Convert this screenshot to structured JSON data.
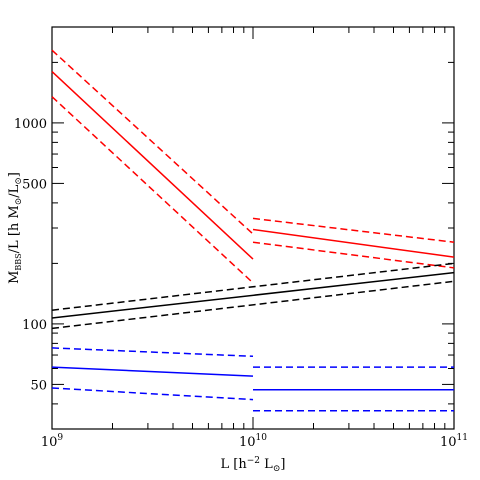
{
  "chart_data": {
    "type": "line",
    "x_scale": "log",
    "y_scale": "log",
    "xlim": [
      1000000000,
      100000000000
    ],
    "ylim": [
      30,
      3000
    ],
    "grid": false,
    "xlabel": "L [h⁻² L⊙]",
    "ylabel": "M_BBS/L [h M⊙/L⊙]",
    "ylabel_parts": {
      "base": "M",
      "base_sub": "BBS",
      "mid": "/L [h M",
      "mid_sub": "⊙",
      "mid2": "/L",
      "mid2_sub": "⊙",
      "end": "]"
    },
    "xlabel_parts": {
      "base": "L [h",
      "sup": "−2",
      "mid": " L",
      "sub": "⊙",
      "end": "]"
    },
    "x_tick_labels": [
      {
        "value": 1000000000,
        "base": "10",
        "exp": "9"
      },
      {
        "value": 10000000000,
        "base": "10",
        "exp": "10"
      },
      {
        "value": 100000000000,
        "base": "10",
        "exp": "11"
      }
    ],
    "y_tick_labels": [
      {
        "value": 50,
        "label": "50"
      },
      {
        "value": 100,
        "label": "100"
      },
      {
        "value": 500,
        "label": "500"
      },
      {
        "value": 1000,
        "label": "1000"
      }
    ],
    "series": [
      {
        "color": "#ff0000",
        "style": "solid",
        "x": [
          1000000000,
          10000000000
        ],
        "y": [
          1800,
          210
        ]
      },
      {
        "color": "#ff0000",
        "style": "dashed",
        "x": [
          1000000000,
          10000000000
        ],
        "y": [
          2300,
          280
        ]
      },
      {
        "color": "#ff0000",
        "style": "dashed",
        "x": [
          1000000000,
          10000000000
        ],
        "y": [
          1350,
          160
        ]
      },
      {
        "color": "#ff0000",
        "style": "solid",
        "x": [
          10000000000,
          100000000000
        ],
        "y": [
          295,
          215
        ]
      },
      {
        "color": "#ff0000",
        "style": "dashed",
        "x": [
          10000000000,
          100000000000
        ],
        "y": [
          335,
          255
        ]
      },
      {
        "color": "#ff0000",
        "style": "dashed",
        "x": [
          10000000000,
          100000000000
        ],
        "y": [
          255,
          190
        ]
      },
      {
        "color": "#000000",
        "style": "solid",
        "x": [
          1000000000,
          100000000000
        ],
        "y": [
          107,
          180
        ]
      },
      {
        "color": "#000000",
        "style": "dashed",
        "x": [
          1000000000,
          100000000000
        ],
        "y": [
          117,
          200
        ]
      },
      {
        "color": "#000000",
        "style": "dashed",
        "x": [
          1000000000,
          100000000000
        ],
        "y": [
          95,
          163
        ]
      },
      {
        "color": "#0000ff",
        "style": "solid",
        "x": [
          1000000000,
          10000000000
        ],
        "y": [
          61,
          55
        ]
      },
      {
        "color": "#0000ff",
        "style": "dashed",
        "x": [
          1000000000,
          10000000000
        ],
        "y": [
          76,
          69
        ]
      },
      {
        "color": "#0000ff",
        "style": "dashed",
        "x": [
          1000000000,
          10000000000
        ],
        "y": [
          48,
          42
        ]
      },
      {
        "color": "#0000ff",
        "style": "solid",
        "x": [
          10000000000,
          100000000000
        ],
        "y": [
          47,
          47
        ]
      },
      {
        "color": "#0000ff",
        "style": "dashed",
        "x": [
          10000000000,
          100000000000
        ],
        "y": [
          61,
          61
        ]
      },
      {
        "color": "#0000ff",
        "style": "dashed",
        "x": [
          10000000000,
          100000000000
        ],
        "y": [
          37,
          37
        ]
      }
    ]
  }
}
